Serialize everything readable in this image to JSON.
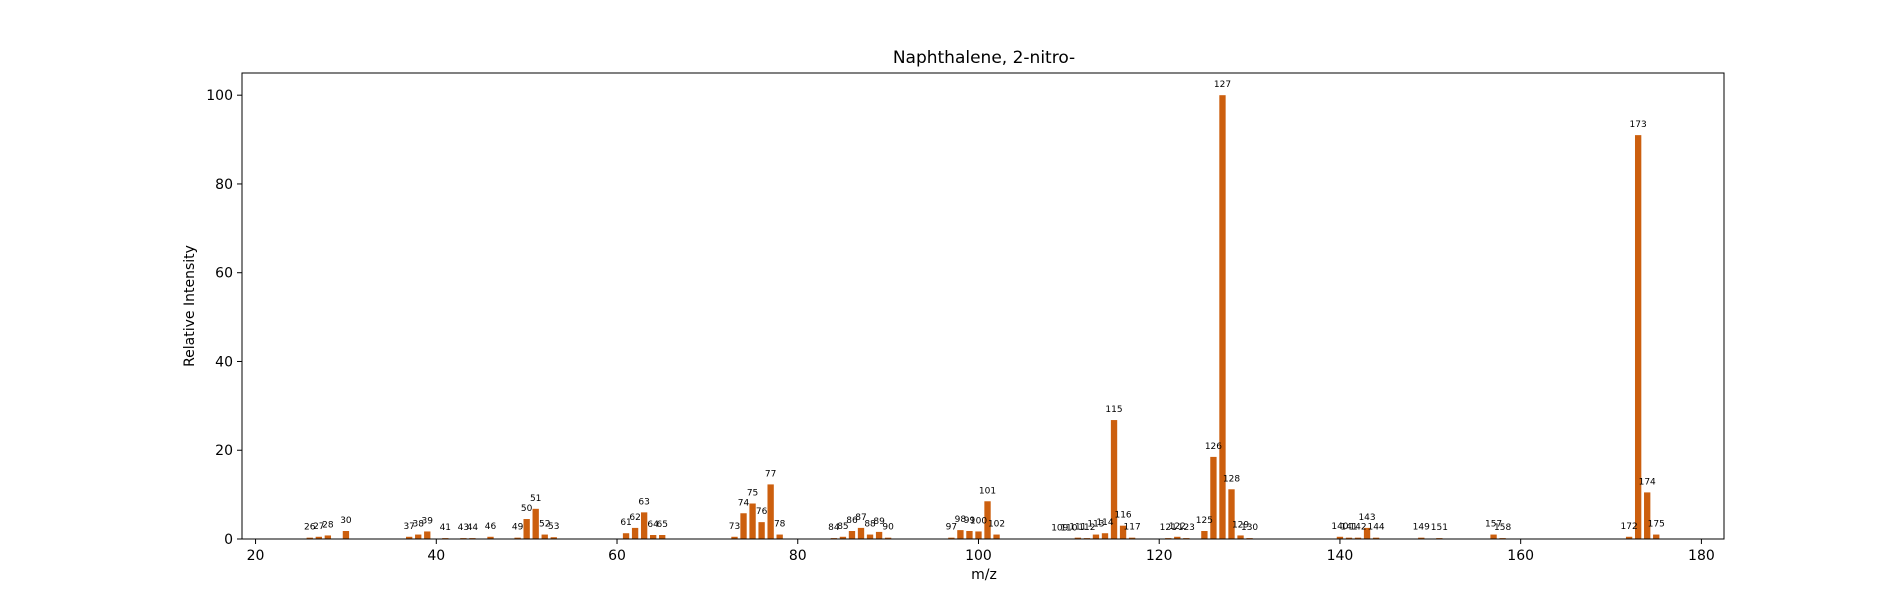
{
  "chart_data": {
    "type": "bar",
    "title": "Naphthalene, 2-nitro-",
    "xlabel": "m/z",
    "ylabel": "Relative Intensity",
    "xlim": [
      18.5,
      182.5
    ],
    "ylim": [
      0,
      105
    ],
    "xticks": [
      20,
      40,
      60,
      80,
      100,
      120,
      140,
      160,
      180
    ],
    "yticks": [
      0,
      20,
      40,
      60,
      80,
      100
    ],
    "grid": false,
    "bar_color": "#cc5f0e",
    "peaks": [
      {
        "mz": 26,
        "intensity": 0.3,
        "label": "26"
      },
      {
        "mz": 27,
        "intensity": 0.5,
        "label": "27"
      },
      {
        "mz": 28,
        "intensity": 0.8,
        "label": "28"
      },
      {
        "mz": 30,
        "intensity": 1.8,
        "label": "30"
      },
      {
        "mz": 37,
        "intensity": 0.5,
        "label": "37"
      },
      {
        "mz": 38,
        "intensity": 1.0,
        "label": "38"
      },
      {
        "mz": 39,
        "intensity": 1.7,
        "label": "39"
      },
      {
        "mz": 41,
        "intensity": 0.2,
        "label": "41"
      },
      {
        "mz": 43,
        "intensity": 0.2,
        "label": "43"
      },
      {
        "mz": 44,
        "intensity": 0.2,
        "label": "44"
      },
      {
        "mz": 46,
        "intensity": 0.5,
        "label": "46"
      },
      {
        "mz": 49,
        "intensity": 0.3,
        "label": "49"
      },
      {
        "mz": 50,
        "intensity": 4.5,
        "label": "50"
      },
      {
        "mz": 51,
        "intensity": 6.8,
        "label": "51"
      },
      {
        "mz": 52,
        "intensity": 1.0,
        "label": "52"
      },
      {
        "mz": 53,
        "intensity": 0.4,
        "label": "53"
      },
      {
        "mz": 61,
        "intensity": 1.3,
        "label": "61"
      },
      {
        "mz": 62,
        "intensity": 2.5,
        "label": "62"
      },
      {
        "mz": 63,
        "intensity": 6.0,
        "label": "63"
      },
      {
        "mz": 64,
        "intensity": 0.9,
        "label": "64"
      },
      {
        "mz": 65,
        "intensity": 0.9,
        "label": "65"
      },
      {
        "mz": 73,
        "intensity": 0.5,
        "label": "73"
      },
      {
        "mz": 74,
        "intensity": 5.8,
        "label": "74"
      },
      {
        "mz": 75,
        "intensity": 8.0,
        "label": "75"
      },
      {
        "mz": 76,
        "intensity": 3.8,
        "label": "76"
      },
      {
        "mz": 77,
        "intensity": 12.3,
        "label": "77"
      },
      {
        "mz": 78,
        "intensity": 1.0,
        "label": "78"
      },
      {
        "mz": 84,
        "intensity": 0.2,
        "label": "84"
      },
      {
        "mz": 85,
        "intensity": 0.5,
        "label": "85"
      },
      {
        "mz": 86,
        "intensity": 1.8,
        "label": "86"
      },
      {
        "mz": 87,
        "intensity": 2.5,
        "label": "87"
      },
      {
        "mz": 88,
        "intensity": 1.0,
        "label": "88"
      },
      {
        "mz": 89,
        "intensity": 1.6,
        "label": "89"
      },
      {
        "mz": 90,
        "intensity": 0.3,
        "label": "90"
      },
      {
        "mz": 97,
        "intensity": 0.3,
        "label": "97"
      },
      {
        "mz": 98,
        "intensity": 2.0,
        "label": "98"
      },
      {
        "mz": 99,
        "intensity": 1.8,
        "label": "99"
      },
      {
        "mz": 100,
        "intensity": 1.7,
        "label": "100"
      },
      {
        "mz": 101,
        "intensity": 8.5,
        "label": "101"
      },
      {
        "mz": 102,
        "intensity": 1.0,
        "label": "102"
      },
      {
        "mz": 109,
        "intensity": 0.1,
        "label": "109"
      },
      {
        "mz": 110,
        "intensity": 0.1,
        "label": "110"
      },
      {
        "mz": 111,
        "intensity": 0.3,
        "label": "111"
      },
      {
        "mz": 112,
        "intensity": 0.2,
        "label": "112"
      },
      {
        "mz": 113,
        "intensity": 1.0,
        "label": "113"
      },
      {
        "mz": 114,
        "intensity": 1.3,
        "label": "114"
      },
      {
        "mz": 115,
        "intensity": 26.8,
        "label": "115"
      },
      {
        "mz": 116,
        "intensity": 3.0,
        "label": "116"
      },
      {
        "mz": 117,
        "intensity": 0.3,
        "label": "117"
      },
      {
        "mz": 121,
        "intensity": 0.2,
        "label": "121"
      },
      {
        "mz": 122,
        "intensity": 0.5,
        "label": "122"
      },
      {
        "mz": 123,
        "intensity": 0.2,
        "label": "123"
      },
      {
        "mz": 125,
        "intensity": 1.8,
        "label": "125"
      },
      {
        "mz": 126,
        "intensity": 18.5,
        "label": "126"
      },
      {
        "mz": 127,
        "intensity": 100,
        "label": "127"
      },
      {
        "mz": 128,
        "intensity": 11.2,
        "label": "128"
      },
      {
        "mz": 129,
        "intensity": 0.8,
        "label": "129"
      },
      {
        "mz": 130,
        "intensity": 0.2,
        "label": "130"
      },
      {
        "mz": 140,
        "intensity": 0.5,
        "label": "140"
      },
      {
        "mz": 141,
        "intensity": 0.3,
        "label": "141"
      },
      {
        "mz": 142,
        "intensity": 0.3,
        "label": "142"
      },
      {
        "mz": 143,
        "intensity": 2.5,
        "label": "143"
      },
      {
        "mz": 144,
        "intensity": 0.3,
        "label": "144"
      },
      {
        "mz": 149,
        "intensity": 0.3,
        "label": "149"
      },
      {
        "mz": 151,
        "intensity": 0.2,
        "label": "151"
      },
      {
        "mz": 157,
        "intensity": 1.0,
        "label": "157"
      },
      {
        "mz": 158,
        "intensity": 0.2,
        "label": "158"
      },
      {
        "mz": 172,
        "intensity": 0.5,
        "label": "172"
      },
      {
        "mz": 173,
        "intensity": 91,
        "label": "173"
      },
      {
        "mz": 174,
        "intensity": 10.5,
        "label": "174"
      },
      {
        "mz": 175,
        "intensity": 1.0,
        "label": "175"
      }
    ]
  }
}
